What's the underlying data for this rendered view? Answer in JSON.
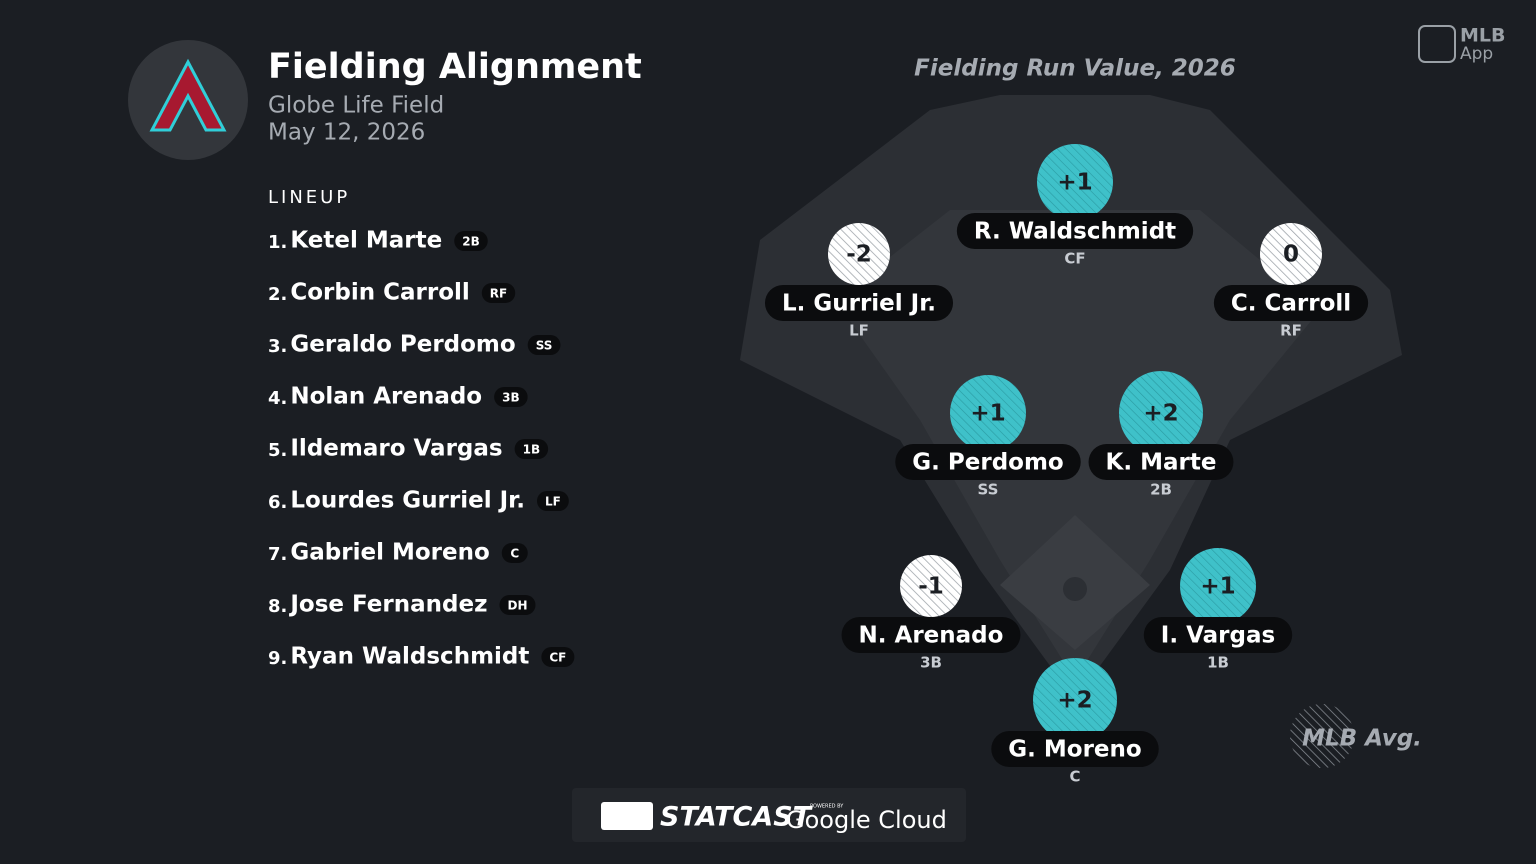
{
  "header": {
    "title": "Fielding Alignment",
    "venue": "Globe Life Field",
    "date": "May 12, 2026"
  },
  "lineup": {
    "label": "LINEUP",
    "players": [
      {
        "number": "1.",
        "name": "Ketel Marte",
        "position": "2B"
      },
      {
        "number": "2.",
        "name": "Corbin Carroll",
        "position": "RF"
      },
      {
        "number": "3.",
        "name": "Geraldo Perdomo",
        "position": "SS"
      },
      {
        "number": "4.",
        "name": "Nolan Arenado",
        "position": "3B"
      },
      {
        "number": "5.",
        "name": "Ildemaro Vargas",
        "position": "1B"
      },
      {
        "number": "6.",
        "name": "Lourdes Gurriel Jr.",
        "position": "LF"
      },
      {
        "number": "7.",
        "name": "Gabriel Moreno",
        "position": "C"
      },
      {
        "number": "8.",
        "name": "Jose Fernandez",
        "position": "DH"
      },
      {
        "number": "9.",
        "name": "Ryan Waldschmidt",
        "position": "CF"
      }
    ]
  },
  "field": {
    "title": "Fielding Run Value, 2026",
    "fielders": [
      {
        "value": "+1",
        "name": "R. Waldschmidt",
        "position": "CF"
      },
      {
        "value": "-2",
        "name": "L. Gurriel Jr.",
        "position": "LF"
      },
      {
        "value": "0",
        "name": "C. Carroll",
        "position": "RF"
      },
      {
        "value": "+1",
        "name": "G. Perdomo",
        "position": "SS"
      },
      {
        "value": "+2",
        "name": "K. Marte",
        "position": "2B"
      },
      {
        "value": "-1",
        "name": "N. Arenado",
        "position": "3B"
      },
      {
        "value": "+1",
        "name": "I. Vargas",
        "position": "1B"
      },
      {
        "value": "+2",
        "name": "G. Moreno",
        "position": "C"
      }
    ],
    "legend": "MLB Avg."
  },
  "branding": {
    "app_top": "MLB",
    "app_bottom": "App",
    "statcast": "STATCAST",
    "powered_by": "POWERED BY",
    "cloud": "Google Cloud"
  }
}
